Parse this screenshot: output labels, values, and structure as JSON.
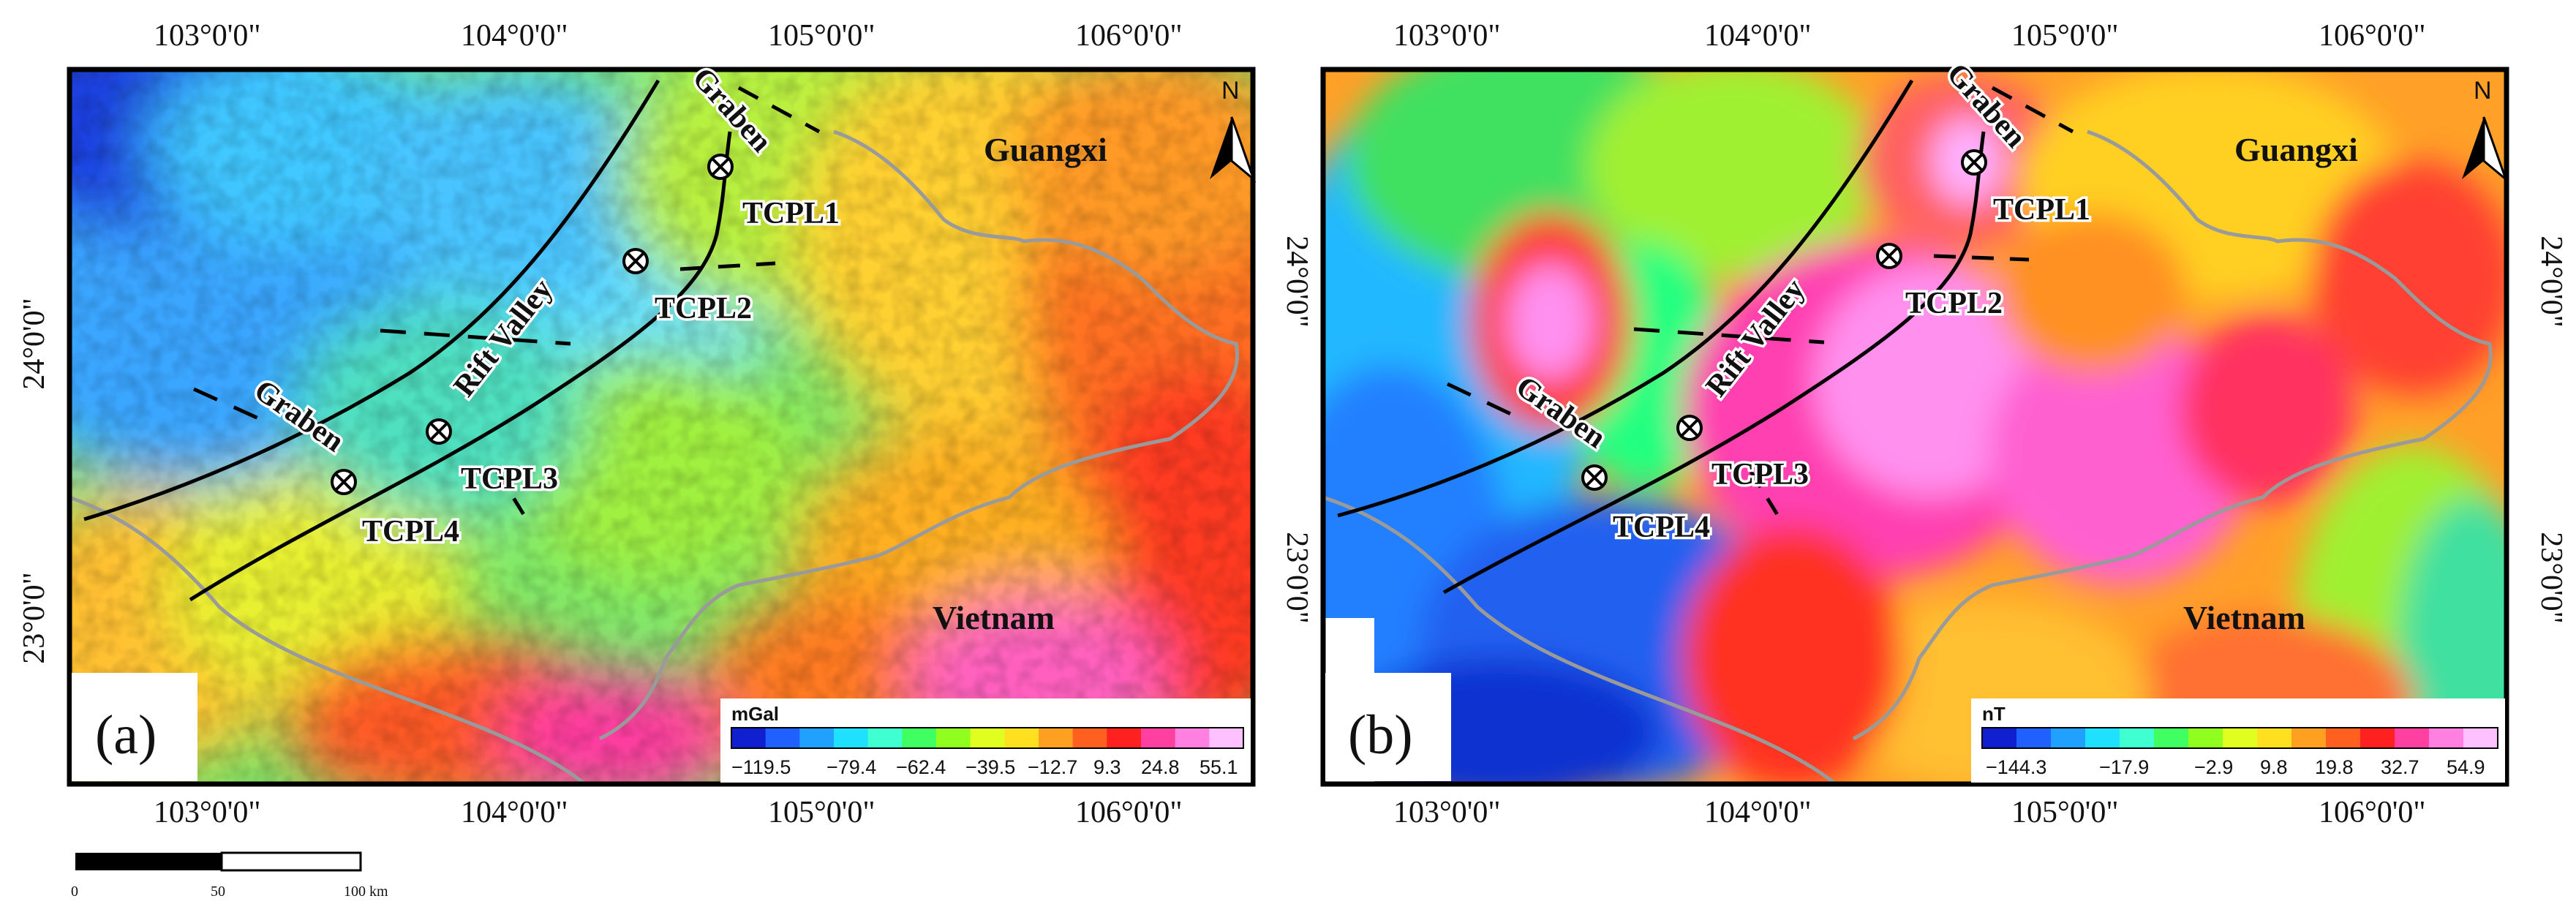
{
  "panels": [
    {
      "label": "(a)",
      "top_ticks": [
        "103°0'0\"",
        "104°0'0\"",
        "105°0'0\"",
        "106°0'0\""
      ],
      "bottom_ticks": [
        "103°0'0\"",
        "104°0'0\"",
        "105°0'0\"",
        "106°0'0\""
      ],
      "right_ticks": [
        "24°0'0\"",
        "23°0'0\""
      ],
      "left_ticks": [
        "24°0'0\"",
        "23°0'0\""
      ],
      "places": {
        "guangxi": "Guangxi",
        "vietnam": "Vietnam",
        "north": "N"
      },
      "features": {
        "graben_ne": "Graben",
        "rift_valley": "Rift Valley",
        "graben_sw": "Graben"
      },
      "stations": [
        "TCPL1",
        "TCPL2",
        "TCPL3",
        "TCPL4"
      ],
      "colorbar": {
        "unit": "mGal",
        "ticks": [
          "−119.5",
          "−79.4",
          "−62.4",
          "−39.5",
          "−12.7",
          "9.3",
          "24.8",
          "55.1"
        ],
        "colors": [
          "#1020d0",
          "#2060ff",
          "#20a0ff",
          "#20e0ff",
          "#40ffd0",
          "#40ff60",
          "#90ff20",
          "#e0ff20",
          "#ffe020",
          "#ffa020",
          "#ff6020",
          "#ff2020",
          "#ff40a0",
          "#ff80e0",
          "#ffc0ff"
        ]
      }
    },
    {
      "label": "(b)",
      "top_ticks": [
        "103°0'0\"",
        "104°0'0\"",
        "105°0'0\"",
        "106°0'0\""
      ],
      "bottom_ticks": [
        "103°0'0\"",
        "104°0'0\"",
        "105°0'0\"",
        "106°0'0\""
      ],
      "right_ticks": [
        "24°0'0\"",
        "23°0'0\""
      ],
      "left_ticks": [],
      "places": {
        "guangxi": "Guangxi",
        "vietnam": "Vietnam",
        "north": "N"
      },
      "features": {
        "graben_ne": "Graben",
        "rift_valley": "Rift Valley",
        "graben_sw": "Graben"
      },
      "stations": [
        "TCPL1",
        "TCPL2",
        "TCPL3",
        "TCPL4"
      ],
      "colorbar": {
        "unit": "nT",
        "ticks": [
          "−144.3",
          "−17.9",
          "−2.9",
          "9.8",
          "19.8",
          "32.7",
          "54.9"
        ],
        "colors": [
          "#1020d0",
          "#2060ff",
          "#20a0ff",
          "#20e0ff",
          "#40ffd0",
          "#40ff60",
          "#90ff20",
          "#e0ff20",
          "#ffe020",
          "#ffa020",
          "#ff6020",
          "#ff2020",
          "#ff40a0",
          "#ff80e0",
          "#ffc0ff"
        ]
      }
    }
  ],
  "scale_bar": {
    "labels": [
      "0",
      "50",
      "100 km"
    ]
  }
}
